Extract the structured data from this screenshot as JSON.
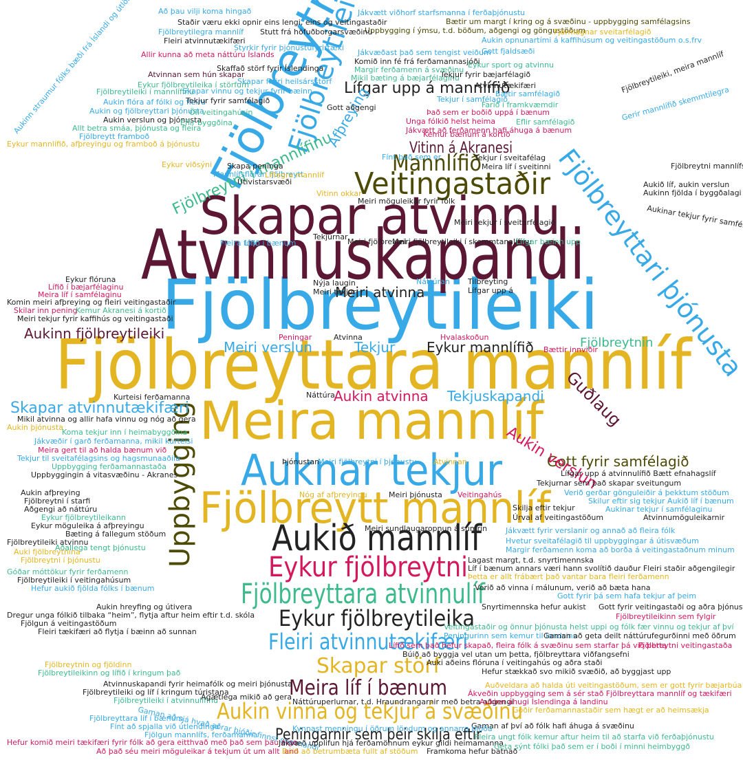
{
  "words": [
    "Fjölbreytileiki",
    "Atvinnuskapandi",
    "Skapar atvinnu",
    "Fjölbreyttara mannlíf",
    "Meira mannlíf",
    "Auknar tekjur",
    "Fjölbreytt mannlíf",
    "Aukið mannlíf",
    "Eykur fjölbreytni",
    "Fjölbreyttara atvinnulíf",
    "Eykur fjölbreytileika",
    "Fleiri atvinnutækifæri",
    "Skapar störf",
    "Meira líf í bænum",
    "Aukin vinna og tekjur á svæðinu",
    "Peningarnir sem þeir skilja eftir",
    "Veitingastaðir",
    "Mannlífið",
    "Vitinn á Akranesi",
    "Fjölbreytni",
    "Fjölbreytileikinn",
    "Fjölbreyttari þjónusta",
    "Uppbygging",
    "Lífgar upp á mannlífið",
    "Skapar atvinnutækifæri",
    "Aukinn fjölbreytileiki",
    "Gott fyrir samfélagið",
    "Aukin atvinna",
    "Tekjuskapandi",
    "Meiri atvinna",
    "Meiri verslun",
    "Tekjur",
    "Eykur mannlífið",
    "Fjölbreytnin",
    "Guðlaug",
    "Aukin verslun",
    "Fjölbreytni í mannlífinu",
    "Afþreying",
    "Að þau vilji koma hingað",
    "Jákvætt viðhorf starfsmanna í ferðaþjónustu",
    "Bætir um margt í kring og á svæðinu - uppbygging samfélagsins",
    "Staðir væru ekki opnir eins lengi, eins og veitingastaðir",
    "Uppbygging í ýmsu, t.d. böðum, aðgengi og göngustöðum",
    "Fjölbreytilegra mannlíf",
    "Stutt frá höfuðborgarsvæðinu",
    "Fjármagnar sveitarfélagið",
    "Fleiri atvinnutækifæri",
    "Aukin opnunartími á kaffihúsum og veitingastöðum o.s.frv",
    "Styrkir fyrir þjónustufyrirtæki",
    "Allir kunna að meta náttúru Íslands",
    "Jákvæðast það sem tengist veiðum",
    "Gott fjaldsæði",
    "Skaffað störf fyrir Íslendinga",
    "Atvinnan sem hún skapar",
    "Mikil bæting á bæjarfélaginu",
    "Eykur fjölbreytileika í störfum",
    "Skapar fleiri heilsársstörf",
    "Fjölbreytileiki í mannlífinu",
    "Skapar vinnu og tekjur fyrir bæinn",
    "Aukin flóra af fólki og fleiru",
    "Aukin og fjölbreyttari þjónusta",
    "Aukin verslun og þjónusta",
    "Eflir byggðina",
    "Allt betra smáa, þjónusta og fleira",
    "Fjölbreytt framboð",
    "Eykur mannlífið, afþreyingu og framboð á þjónustu",
    "Aukinn straumur fólks bæði frá Íslandi og útlöndum",
    "Eykur flóruna",
    "Lífið í bæjarfélaginu",
    "Meira líf í samfélaginu",
    "Komin meiri afþreying og fleiri veitingastaðir",
    "Skilar inn pening",
    "Kemur Akranesi á kortið",
    "Meiri tekjur fyrir kaffihús og veitingastaði",
    "Mikil atvinna og allir hafa vinnu og nóg að gera",
    "Koma tekjur inn í heimabyggðina",
    "Aukin þjónusta",
    "Jákvæðir í garð ferðamanna, mikil kurteisi",
    "Meira gert til að halda bænum við",
    "Tekjur til sveitafélagsins og hagsmunaaðila",
    "Uppbygging ferðamannastaða",
    "Uppbyggingin á vitasvæðinu - Akranes",
    "Aukin afþreying",
    "Fjölbreytni í starfi",
    "Aðgengi að náttúru",
    "Eykur fjölbreytileikann",
    "Eykur möguleika á afþreyingu",
    "Bæting á fallegum stöðum",
    "Fjölbreytileiki atvinnu",
    "Aðallega tengt þjónustu",
    "Auki fjölbreytnina",
    "Fjölbreytni í þjónustu",
    "Góðar móttökur fyrir ferðamenn",
    "Fjölbreytileiki í veitingahúsum",
    "Hefur aukið fjölda fólks í bænum",
    "Aukin hreyfing og útivera",
    "Dregur unga fólkið tilbaka “heim”, flytja aftur heim eftir t.d. skóla",
    "Fjölgun á veitingastöðum",
    "Fleiri tækifæri að flytja í bæinn að sunnan",
    "Fjölbreytnin og fjöldinn",
    "Fjölbreytileikinn og lífið í kringum það",
    "Atvinnuskapandi fyrir heimafólk og meiri þjónusta",
    "Fjölbreytileiki og líf í kringum túristana",
    "Fjölbreytileiki í atvinnulífinu",
    "Ágætlega mikið að gera",
    "Gaman að sjá hvað aðrar þjóðir finnst spennandi",
    "Fjölbreyttara líf í bænum",
    "Fínt að spjalla við útlendinga",
    "Fjölgun mannlífs, ferðamanna",
    "Hefur komið meiri tækifæri fyrir fólk að gera eitthvað með það sem þau eiga",
    "Að það séu meiri möguleikar á tekjum út um allt land",
    "Búið að betrumbæta fullt af stöðum",
    "Framkoma hefur batnað",
    "Jákvæð upplifun hjá ferðamönnum eykur gildi heimamanna",
    "Fleira ungt fólk kemur aftur heim til að starfa við ferðaþjónustu",
    "Geta sýnt fólki það sem er í boði í minni heimbyggð",
    "Gaman af því að fólk hafi áhuga á svæðinu",
    "Kynnast menningu í öðrum löndum og annarra þjóða",
    "Náttúruperlurnar, t.d. Hraundrangarnir með betra aðgengi",
    "Fjölbreytni mannlífsins",
    "Aukið líf, aukin verslun",
    "Aukinn fjölda í byggðalagi",
    "Aukinar tekjur fyrir samfélagið",
    "Veitingastaðir og önnur þjónusta helst uppi og fólk fær vinnu og tekjur af því",
    "Peningurinn sem kemur til landsins",
    "Gaman að geta deilt náttúrufegurðinni með öðrum",
    "Lífið sem það hefur skapað, fleira fólk á svæðinu sem starfar þá við þetta",
    "Fjölbreytni veitingastaða",
    "Búið að byggja vel utan um þetta, fjölbreyttara viðfangsefni",
    "Auki aðeins flóruna í veitingahús og aðra staði",
    "Hefur stækkað svo mikið svæðið, að byggjast upp",
    "Auðveldara að halda úti veitingastöðum, sem er gott fyrir bæjarbúa",
    "Ákveðin uppbygging sem á sér stað Fjölbreyttara mannlíf og tækifæri",
    "Aukinn áhugi Íslendinga á landinu",
    "Góðir ferðamannastaðir sem hægt er að heimsækja",
    "Verið að vinna í málunum, verið að bæta hana",
    "Gott fyrir þá sem hafa tekjur af þeim",
    "Gott fyrir veitingastaði og aðra þjónustu",
    "Fjölbreytileikinn sem fylgir",
    "Snyrtimennska hefur aukist",
    "Lífgar upp á atvinnulífið Bætt efnahagslíf",
    "Tekjurnar sem það skapar sveitungum",
    "Verið gerðar gönguleiðir á þekktum stöðum",
    "Skilur eftir sig tekjur Aukið líf í bænum",
    "Aukinar tekjur í samfélaginu",
    "Atvinnumöguleikarnir",
    "Skilja eftir tekjur",
    "Úrval af veitingastöðum",
    "Jákvætt fyrir verslanir og annað að fleira fólk",
    "Hvetur sveitafélagið til uppbyggingar á útisvæðum",
    "Margir ferðamenn koma að borða á veitingastaðnum minum",
    "Lagast margt, t.d. snyrtimennska",
    "Líf í bænum annars væri hann svolítið dauður Fleiri staðir aðgengilegir",
    "Þetta er allt frábært það vantar bara fleiri ferðamenn",
    "Nýja laugin",
    "Meiri tekjur",
    "Náttúran",
    "Tilbreyting",
    "Lífgar upp á",
    "Peningar",
    "Atvinna",
    "Hvalaskoðun",
    "Bættir innviðir",
    "Náttúra",
    "Kurteisi ferðamanna",
    "Þjónustan",
    "Meiri fjölbreytni í þjónustu",
    "Atvinnan",
    "Nóg af afþreyingu",
    "Meiri þjónusta",
    "Veitingahús",
    "Meiri sundlaugaropnun á sumrin",
    "Meiri fjölbreytileiki í skemmtanalífinu",
    "Lífgar bæinn upp",
    "Meiri tekjur í sveitarfélagið",
    "Meiri fjölbreytni",
    "Tekjurnar",
    "Fleira fólk",
    "Lífið í bænum",
    "Útivistarsvæði",
    "Skapa peninga",
    "Mannlífsflóran fjölbreytt",
    "Vitinn okkar",
    "Meiri möguleikar fyrir fólk",
    "Fínt það sem er",
    "Kemur bænum á kortið",
    "Tekjur í sveitafélag",
    "Meira líf í sveitinni",
    "Unga fólkið helst heima",
    "Jákvætt að ferðamenn hafi áhuga á bænum",
    "Eflir samfélagið",
    "Það sem er boðið uppá í bænum",
    "Farið í framkvæmdir",
    "Tekjur í samfélagið",
    "Bætir samfélagið",
    "Atvinnutækifæri",
    "Tekjur fyrir bæjarfélagið",
    "Margir ferðamenn á svæðinu",
    "Komið inn fé frá ferðamannasjóði",
    "Eykur sport og atvinnu",
    "Tekjur fyrir samfélagið",
    "Gott aðgengi",
    "Öll veitingahúsin",
    "Eykur viðsýni",
    "Líflegra mannlíf",
    "Fjölbreytileiki, meira mannlíf",
    "Gerir mannlífið skemmtilegra"
  ]
}
